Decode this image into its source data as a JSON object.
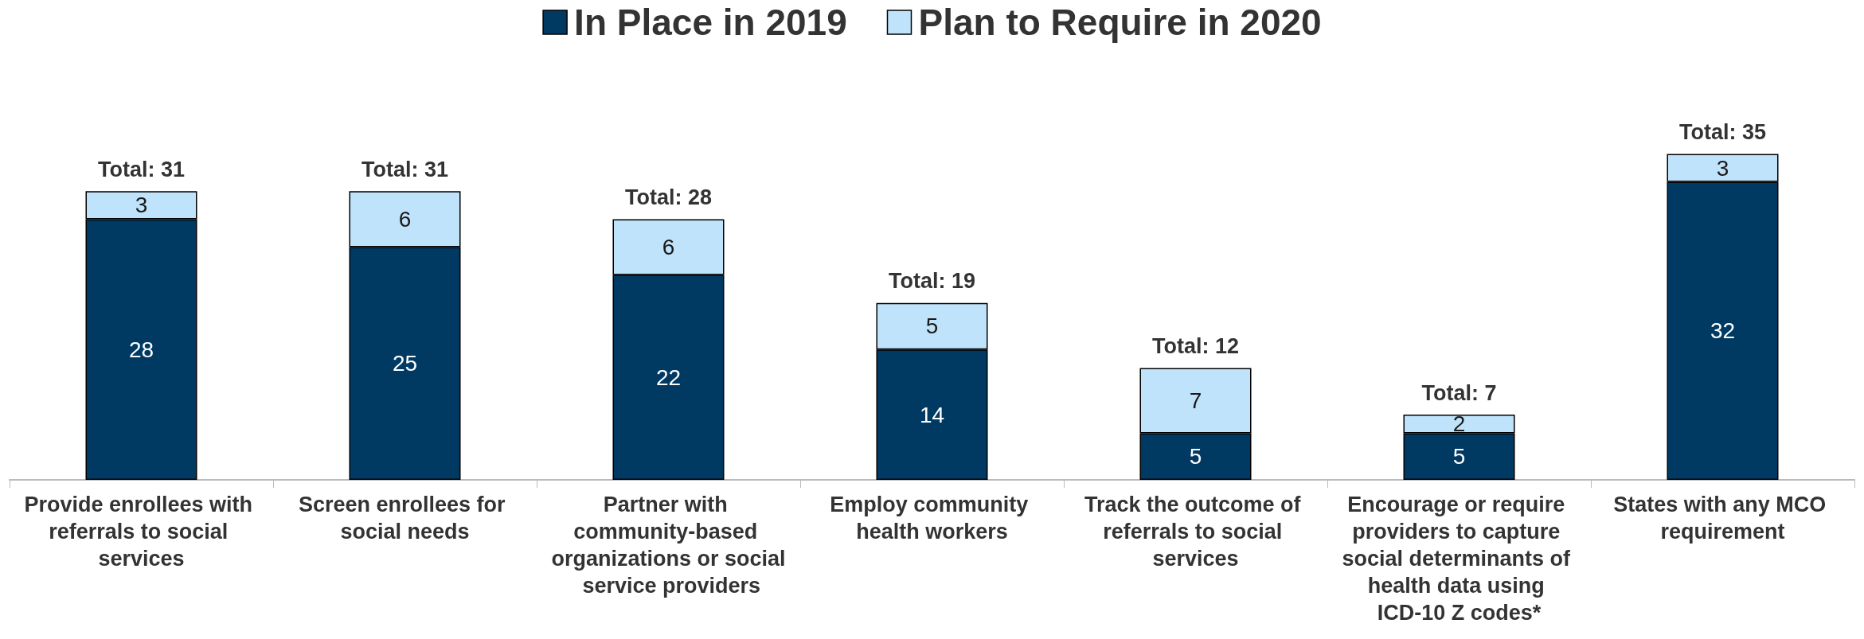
{
  "chart_data": {
    "type": "bar",
    "stacked": true,
    "data_labels": true,
    "legend": "top",
    "categories": [
      "Provide enrollees with referrals to social services",
      "Screen enrollees for social needs",
      "Partner with community-based organizations or social service providers",
      "Employ community health workers",
      "Track the outcome of referrals to social services",
      "Encourage or require providers to capture social determinants of health data using ICD-10 Z codes*",
      "States with any MCO requirement"
    ],
    "series": [
      {
        "name": "In Place in 2019",
        "color": "#003a63",
        "values": [
          28,
          25,
          22,
          14,
          5,
          5,
          32
        ]
      },
      {
        "name": "Plan to Require in 2020",
        "color": "#bfe3fb",
        "values": [
          3,
          6,
          6,
          5,
          7,
          2,
          3
        ]
      }
    ],
    "totals": [
      "Total: 31",
      "Total: 31",
      "Total: 28",
      "Total: 19",
      "Total: 12",
      "Total: 7",
      "Total: 35"
    ]
  }
}
